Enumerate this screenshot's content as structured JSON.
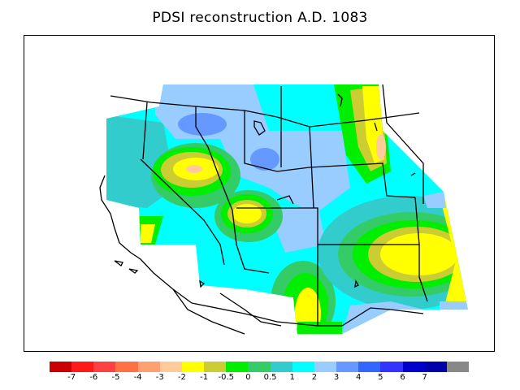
{
  "title": "PDSI reconstruction A.D. 1083",
  "legend": {
    "colors": [
      "#cc0000",
      "#ff1a1a",
      "#ff4040",
      "#ff7043",
      "#ffa070",
      "#ffcc99",
      "#ffff00",
      "#cccc33",
      "#00ee00",
      "#33cc66",
      "#33cccc",
      "#00ffff",
      "#99ccff",
      "#6699ff",
      "#3366ff",
      "#3333ff",
      "#0000cc",
      "#0000aa",
      "#888888"
    ],
    "tick_labels": [
      "-7",
      "-6",
      "-5",
      "-4",
      "-3",
      "-2",
      "-1",
      "-0.5",
      "0",
      "0.5",
      "1",
      "2",
      "3",
      "4",
      "5",
      "6",
      "7"
    ]
  },
  "map_colors": {
    "cyan": "#00ffff",
    "teal": "#33cccc",
    "lightblue": "#99ccff",
    "blue": "#6699ff",
    "green": "#00ee00",
    "olive": "#cccc33",
    "yellow": "#ffff00",
    "peach": "#ffcc99"
  }
}
